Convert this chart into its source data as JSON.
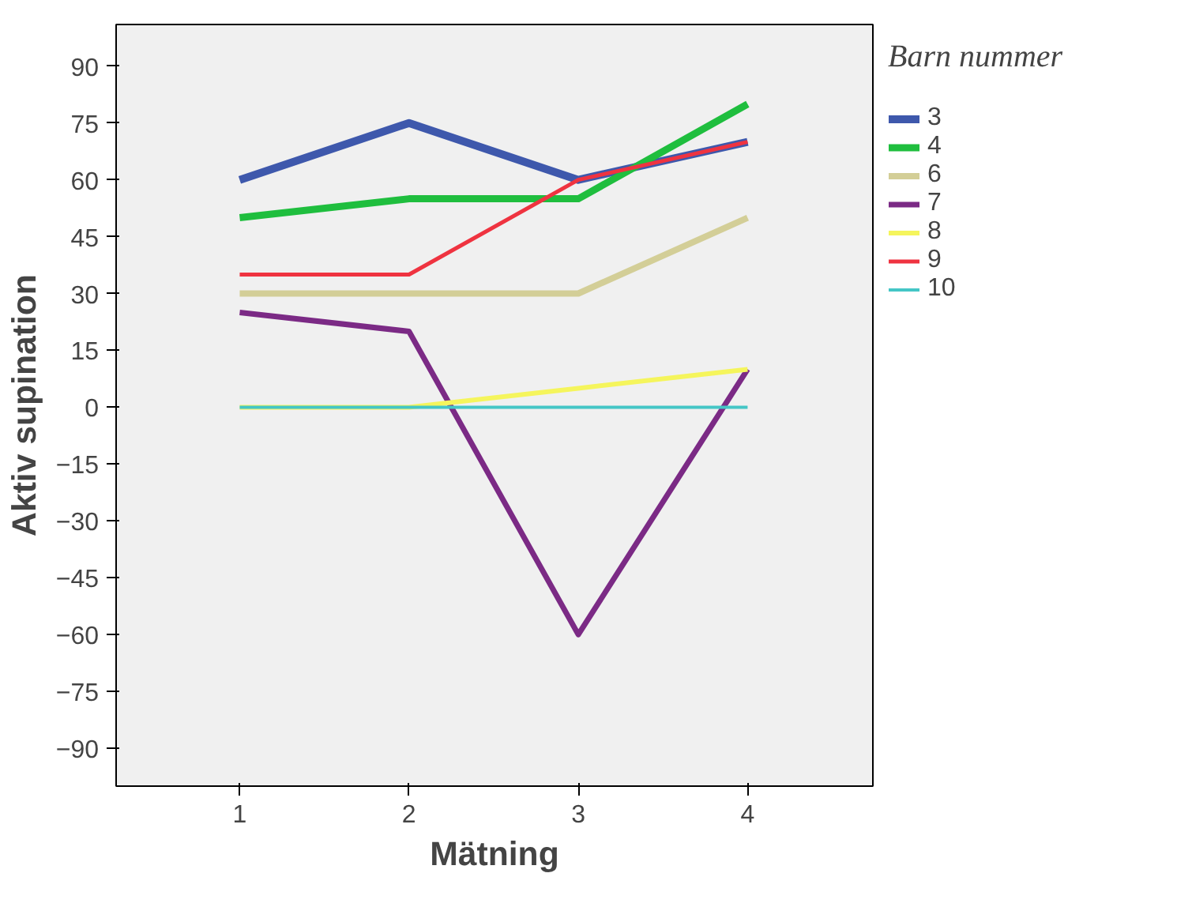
{
  "chart_data": {
    "type": "line",
    "xlabel": "Mätning",
    "ylabel": "Aktiv supination",
    "legend_title": "Barn nummer",
    "legend": "right",
    "grid": false,
    "x": [
      1,
      2,
      3,
      4
    ],
    "xlim": [
      0.27,
      4.74
    ],
    "xticks": [
      1,
      2,
      3,
      4
    ],
    "ylim": [
      -100,
      101
    ],
    "yticks": [
      -90,
      -75,
      -60,
      -45,
      -30,
      -15,
      0,
      15,
      30,
      45,
      60,
      75,
      90
    ],
    "series": [
      {
        "name": "3",
        "color": "#3e58ac",
        "values": [
          60,
          75,
          60,
          70
        ]
      },
      {
        "name": "4",
        "color": "#1fbe3e",
        "values": [
          50,
          55,
          55,
          80
        ]
      },
      {
        "name": "6",
        "color": "#d3ce97",
        "values": [
          30,
          30,
          30,
          50
        ]
      },
      {
        "name": "7",
        "color": "#7b2a85",
        "values": [
          25,
          20,
          -60,
          10
        ]
      },
      {
        "name": "8",
        "color": "#f5f55c",
        "values": [
          0,
          0,
          5,
          10
        ]
      },
      {
        "name": "9",
        "color": "#ef3340",
        "values": [
          35,
          35,
          60,
          70
        ]
      },
      {
        "name": "10",
        "color": "#44c6c6",
        "values": [
          0,
          0,
          0,
          0
        ]
      }
    ]
  }
}
